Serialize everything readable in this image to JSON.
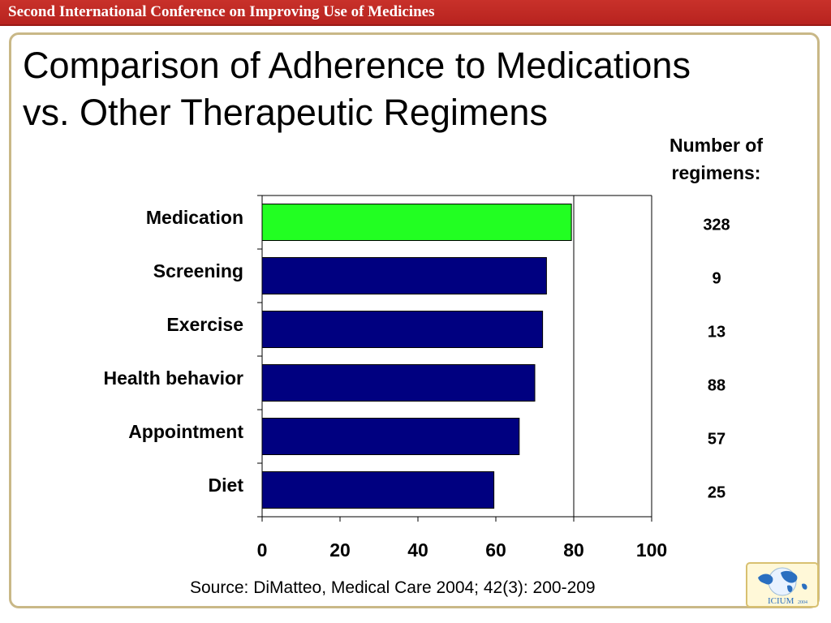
{
  "header": {
    "banner_text": "Second International Conference on Improving Use of Medicines"
  },
  "slide": {
    "title_line1": "Comparison of Adherence to Medications",
    "title_line2": "vs. Other Therapeutic Regimens",
    "counts_header_line1": "Number of",
    "counts_header_line2": "regimens:",
    "source": "Source: DiMatteo, Medical Care 2004; 42(3): 200-209",
    "logo_text": "ICIUM",
    "logo_year": "2004"
  },
  "colors": {
    "highlight": "#22ff22",
    "bar": "#000080",
    "banner": "#b8231f",
    "frame": "#c9b887"
  },
  "chart_data": {
    "type": "bar",
    "orientation": "horizontal",
    "categories": [
      "Medication",
      "Screening",
      "Exercise",
      "Health behavior",
      "Appointment",
      "Diet"
    ],
    "values": [
      79.4,
      73,
      72,
      70,
      66,
      59.5
    ],
    "regimen_counts": [
      "328",
      "9",
      "13",
      "88",
      "57",
      "25"
    ],
    "highlight_category": "Medication",
    "xlim": [
      0,
      100
    ],
    "xticks": [
      "0",
      "20",
      "40",
      "60",
      "80",
      "100"
    ],
    "xlabel": "",
    "ylabel": "",
    "grid": "vertical at 80 and 100"
  }
}
